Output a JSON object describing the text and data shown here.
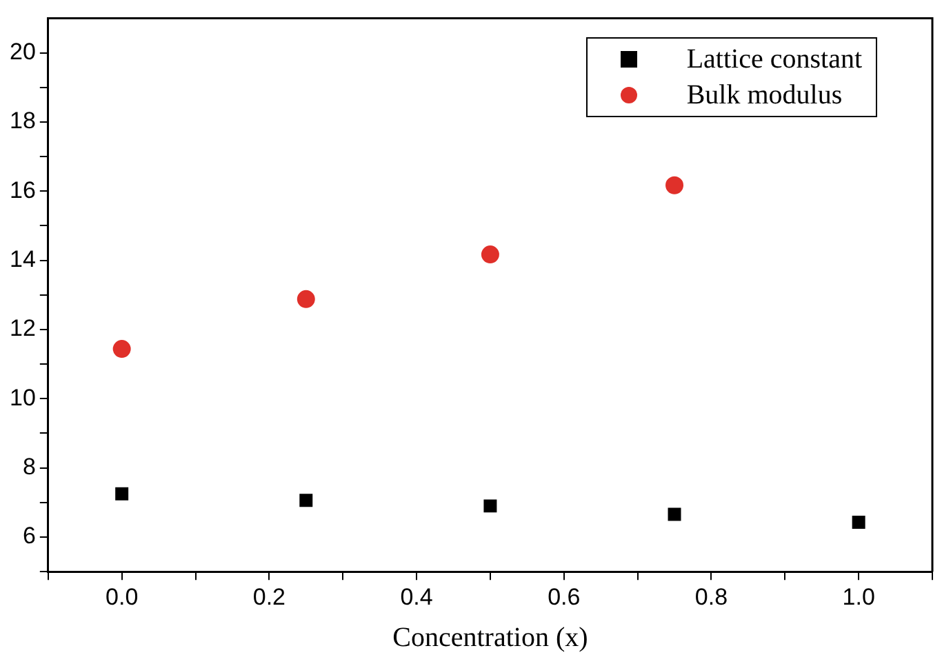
{
  "chart_data": {
    "type": "scatter",
    "xlabel": "Concentration (x)",
    "x": [
      0,
      0.25,
      0.5,
      0.75,
      1.0
    ],
    "series": [
      {
        "name": "Lattice constant",
        "color": "#000000",
        "marker": "square",
        "values": [
          7.25,
          7.06,
          6.9,
          6.66,
          6.43
        ]
      },
      {
        "name": "Bulk modulus",
        "color": "#e0302a",
        "marker": "circle",
        "values": [
          11.44,
          12.88,
          14.17,
          16.17,
          null
        ]
      }
    ],
    "xlim": [
      -0.1,
      1.1
    ],
    "xticks": [
      {
        "value": -0.1,
        "label": null
      },
      {
        "value": 0,
        "label": "0.0"
      },
      {
        "value": 0.1,
        "label": null
      },
      {
        "value": 0.2,
        "label": "0.2"
      },
      {
        "value": 0.3,
        "label": null
      },
      {
        "value": 0.4,
        "label": "0.4"
      },
      {
        "value": 0.5,
        "label": null
      },
      {
        "value": 0.6,
        "label": "0.6"
      },
      {
        "value": 0.7,
        "label": null
      },
      {
        "value": 0.8,
        "label": "0.8"
      },
      {
        "value": 0.9,
        "label": null
      },
      {
        "value": 1,
        "label": "1.0"
      },
      {
        "value": 1.1,
        "label": null
      }
    ],
    "ylim": [
      5,
      21
    ],
    "yticks": [
      {
        "value": 5,
        "label": null
      },
      6,
      {
        "value": 7,
        "label": null
      },
      8,
      {
        "value": 9,
        "label": null
      },
      10,
      {
        "value": 11,
        "label": null
      },
      12,
      {
        "value": 13,
        "label": null
      },
      14,
      {
        "value": 15,
        "label": null
      },
      16,
      {
        "value": 17,
        "label": null
      },
      18,
      {
        "value": 19,
        "label": null
      },
      20
    ],
    "grid": false,
    "legend": "top right"
  }
}
